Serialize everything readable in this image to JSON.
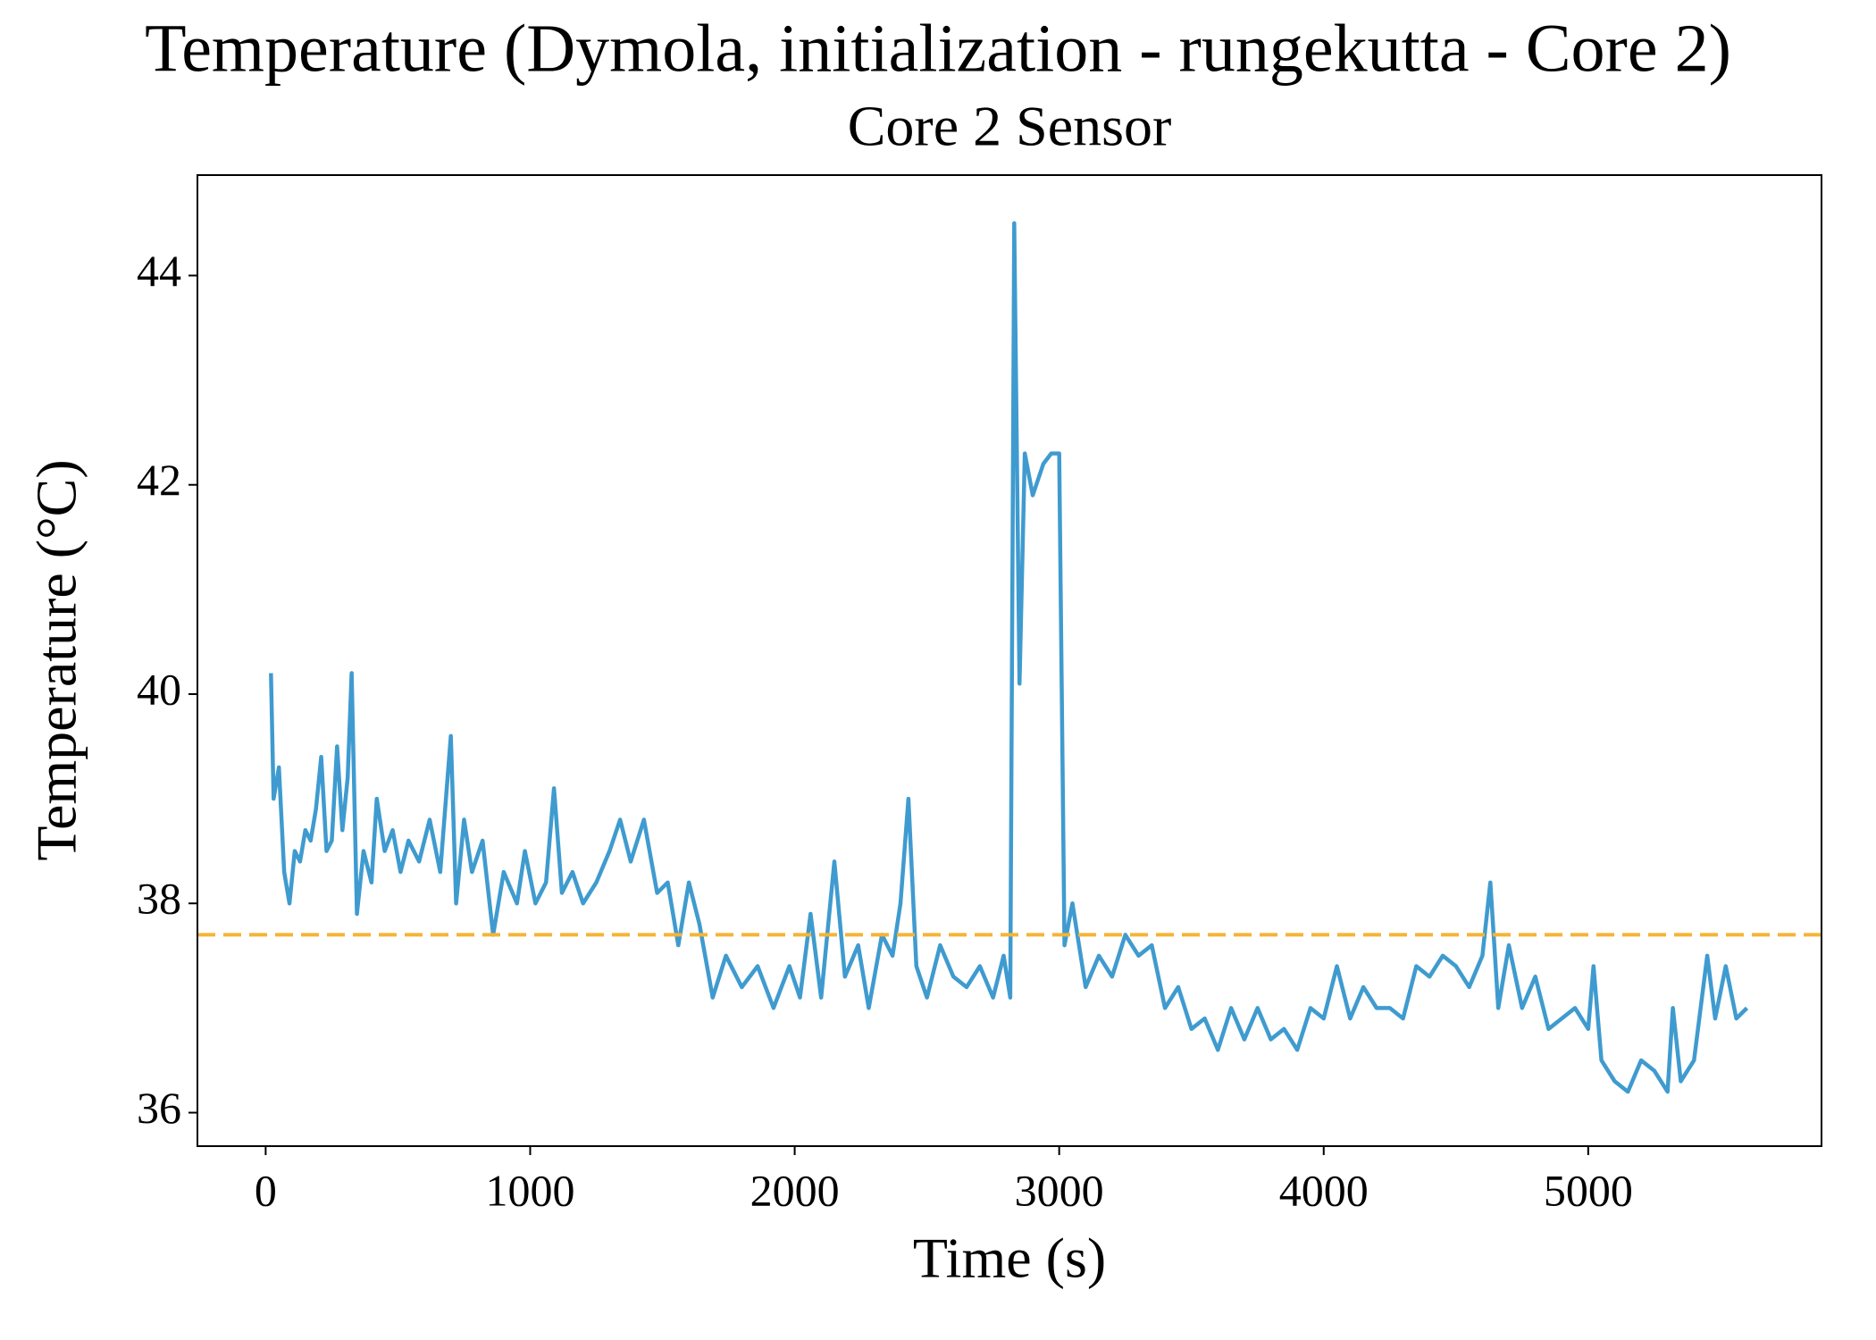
{
  "chart_data": {
    "type": "line",
    "title": "Temperature (Dymola, initialization - rungekutta - Core 2)",
    "subtitle": "Core 2 Sensor",
    "x_label": "Time (s)",
    "y_label": "Temperature (°C)",
    "x": [
      20,
      30,
      50,
      70,
      90,
      110,
      130,
      150,
      170,
      190,
      210,
      230,
      250,
      270,
      290,
      310,
      325,
      345,
      370,
      400,
      420,
      450,
      480,
      510,
      540,
      580,
      620,
      660,
      700,
      720,
      750,
      780,
      820,
      860,
      900,
      950,
      980,
      1020,
      1060,
      1090,
      1120,
      1160,
      1200,
      1250,
      1300,
      1340,
      1380,
      1430,
      1480,
      1520,
      1560,
      1600,
      1640,
      1690,
      1740,
      1800,
      1860,
      1920,
      1980,
      2020,
      2060,
      2100,
      2150,
      2190,
      2240,
      2280,
      2330,
      2370,
      2400,
      2430,
      2460,
      2500,
      2550,
      2600,
      2650,
      2700,
      2750,
      2790,
      2815,
      2830,
      2850,
      2870,
      2900,
      2940,
      2970,
      3000,
      3020,
      3050,
      3100,
      3150,
      3200,
      3250,
      3300,
      3350,
      3400,
      3450,
      3500,
      3550,
      3600,
      3650,
      3700,
      3750,
      3800,
      3850,
      3900,
      3950,
      4000,
      4050,
      4100,
      4150,
      4200,
      4250,
      4300,
      4350,
      4400,
      4450,
      4500,
      4550,
      4600,
      4630,
      4660,
      4700,
      4750,
      4800,
      4850,
      4900,
      4950,
      5000,
      5020,
      5050,
      5100,
      5150,
      5200,
      5250,
      5300,
      5320,
      5350,
      5400,
      5450,
      5480,
      5520,
      5560,
      5600
    ],
    "series": [
      {
        "color": "#3f9bcf",
        "values": [
          40.2,
          39.0,
          39.3,
          38.3,
          38.0,
          38.5,
          38.4,
          38.7,
          38.6,
          38.9,
          39.4,
          38.5,
          38.6,
          39.5,
          38.7,
          39.2,
          40.2,
          37.9,
          38.5,
          38.2,
          39.0,
          38.5,
          38.7,
          38.3,
          38.6,
          38.4,
          38.8,
          38.3,
          39.6,
          38.0,
          38.8,
          38.3,
          38.6,
          37.7,
          38.3,
          38.0,
          38.5,
          38.0,
          38.2,
          39.1,
          38.1,
          38.3,
          38.0,
          38.2,
          38.5,
          38.8,
          38.4,
          38.8,
          38.1,
          38.2,
          37.6,
          38.2,
          37.8,
          37.1,
          37.5,
          37.2,
          37.4,
          37.0,
          37.4,
          37.1,
          37.9,
          37.1,
          38.4,
          37.3,
          37.6,
          37.0,
          37.7,
          37.5,
          38.0,
          39.0,
          37.4,
          37.1,
          37.6,
          37.3,
          37.2,
          37.4,
          37.1,
          37.5,
          37.1,
          44.5,
          40.1,
          42.3,
          41.9,
          42.2,
          42.3,
          42.3,
          37.6,
          38.0,
          37.2,
          37.5,
          37.3,
          37.7,
          37.5,
          37.6,
          37.0,
          37.2,
          36.8,
          36.9,
          36.6,
          37.0,
          36.7,
          37.0,
          36.7,
          36.8,
          36.6,
          37.0,
          36.9,
          37.4,
          36.9,
          37.2,
          37.0,
          37.0,
          36.9,
          37.4,
          37.3,
          37.5,
          37.4,
          37.2,
          37.5,
          38.2,
          37.0,
          37.6,
          37.0,
          37.3,
          36.8,
          36.9,
          37.0,
          36.8,
          37.4,
          36.5,
          36.3,
          36.2,
          36.5,
          36.4,
          36.2,
          37.0,
          36.3,
          36.5,
          37.5,
          36.9,
          37.4,
          36.9,
          37.0
        ]
      }
    ],
    "hlines": [
      {
        "value": 37.7,
        "color": "#f5b335",
        "style": "dashed"
      }
    ],
    "xlim": [
      -258,
      5882
    ],
    "ylim": [
      35.68,
      44.96
    ],
    "xticks": [
      0,
      1000,
      2000,
      3000,
      4000,
      5000
    ],
    "yticks": [
      36,
      38,
      40,
      42,
      44
    ],
    "grid": false
  }
}
